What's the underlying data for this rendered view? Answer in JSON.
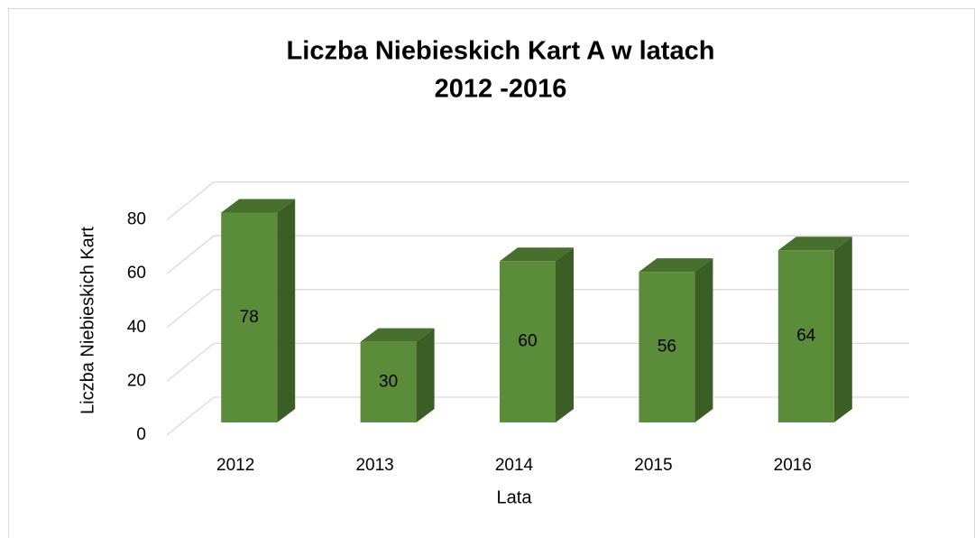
{
  "chart_data": {
    "type": "bar3d",
    "title": [
      "Liczba Niebieskich Kart A w latach",
      "2012 -2016"
    ],
    "x_label": "Lata",
    "y_label": "Liczba Niebieskich Kart",
    "categories": [
      "2012",
      "2013",
      "2014",
      "2015",
      "2016"
    ],
    "values": [
      78,
      30,
      60,
      56,
      64
    ],
    "color": "#5b8c3a",
    "ylim": [
      0,
      80
    ],
    "yticks": [
      0,
      20,
      40,
      60,
      80
    ],
    "grid": true
  }
}
